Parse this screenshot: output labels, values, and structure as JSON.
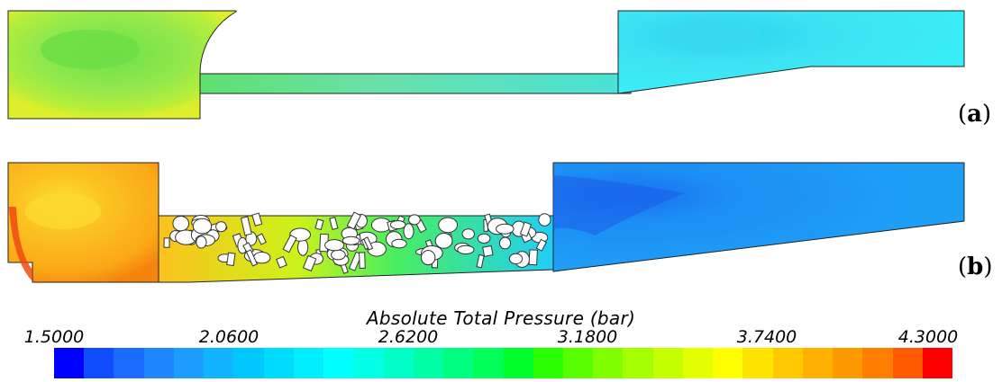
{
  "panels": [
    {
      "label_open": "(",
      "label_letter": "a",
      "label_close": ")"
    },
    {
      "label_open": "(",
      "label_letter": "b",
      "label_close": ")"
    }
  ],
  "colorbar": {
    "title": "Absolute Total Pressure (bar)",
    "ticks": [
      "1.5000",
      "2.0600",
      "2.6200",
      "3.1800",
      "3.7400",
      "4.3000"
    ],
    "min": 1.5,
    "max": 4.3,
    "colors": [
      "#0000ff",
      "#0f4dff",
      "#1a6cff",
      "#1e86ff",
      "#1f9dff",
      "#13b4ff",
      "#00c8ff",
      "#00dcff",
      "#00eeff",
      "#00ffff",
      "#00ffe4",
      "#00ffc6",
      "#00ffa4",
      "#00ff80",
      "#00ff57",
      "#00ff2a",
      "#2aff00",
      "#57ff00",
      "#80ff00",
      "#a4ff00",
      "#c6ff00",
      "#e4ff00",
      "#ffff00",
      "#ffe400",
      "#ffc800",
      "#ffb000",
      "#ff9900",
      "#ff7d00",
      "#ff5a00",
      "#ff0000"
    ]
  },
  "fields": {
    "a": {
      "base_color": "#8de84a",
      "core_color": "#7ee34c",
      "outlet_color": "#44e4f2"
    },
    "b": {
      "base_color": "#fbb21a",
      "core_color": "#fcd22a",
      "outlet_color": "#1e9af6",
      "pack_color_start": "#fbd222",
      "pack_color_end": "#30d8f0"
    }
  }
}
